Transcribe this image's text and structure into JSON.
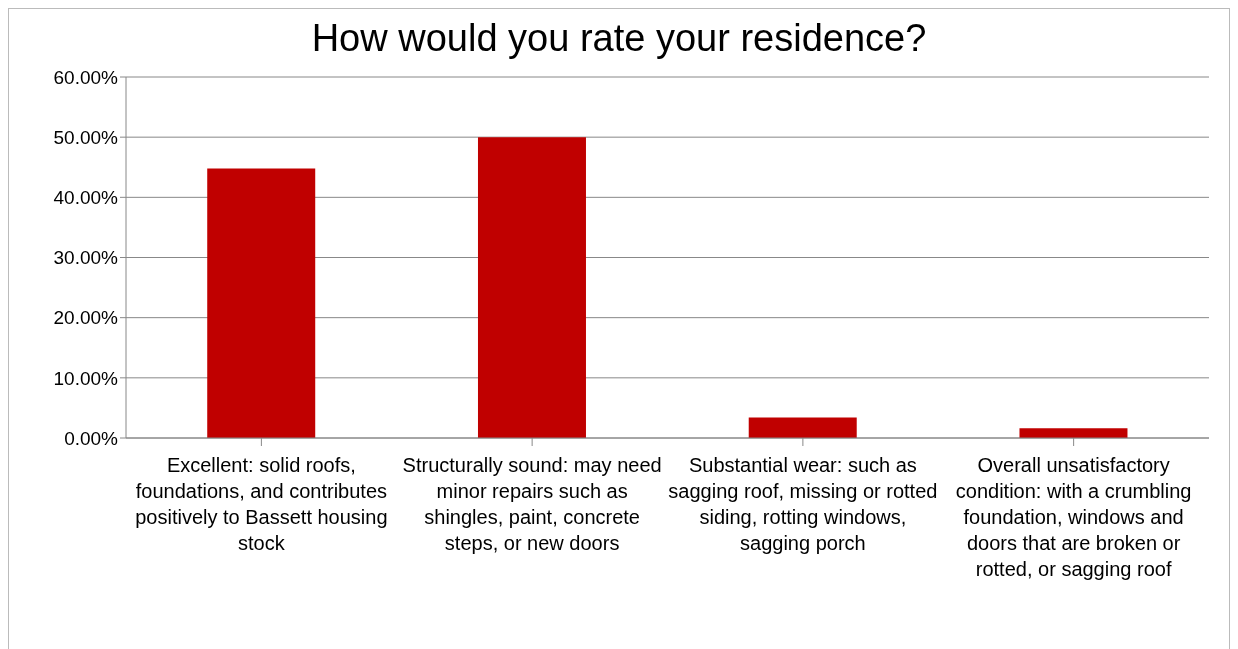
{
  "chart_data": {
    "type": "bar",
    "title": "How would you rate your residence?",
    "categories": [
      "Excellent: solid roofs, foundations, and contributes positively to Bassett housing stock",
      "Structurally sound: may need minor repairs such as shingles, paint, concrete steps, or new doors",
      "Substantial wear: such as sagging roof, missing or rotted siding, rotting windows, sagging porch",
      "Overall unsatisfactory condition: with a crumbling foundation, windows and doors that are broken or rotted, or sagging roof"
    ],
    "values": [
      44.8,
      50.0,
      3.4,
      1.6
    ],
    "color": "#c00000",
    "ylim": [
      0,
      60
    ],
    "yticks": [
      {
        "value": 0,
        "label": "0.00%"
      },
      {
        "value": 10,
        "label": "10.00%"
      },
      {
        "value": 20,
        "label": "20.00%"
      },
      {
        "value": 30,
        "label": "30.00%"
      },
      {
        "value": 40,
        "label": "40.00%"
      },
      {
        "value": 50,
        "label": "50.00%"
      },
      {
        "value": 60,
        "label": "60.00%"
      }
    ],
    "grid": "y"
  }
}
